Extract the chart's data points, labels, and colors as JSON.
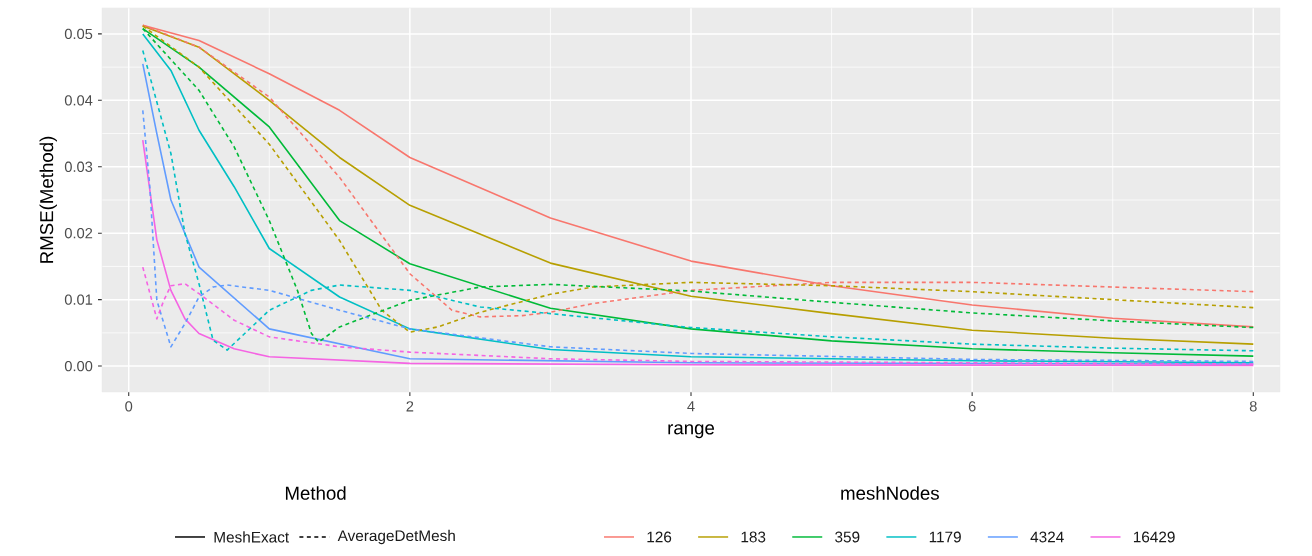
{
  "chart_data": {
    "type": "line",
    "xlabel": "range",
    "ylabel": "RMSE(Method)",
    "legend_title": "meshNodes",
    "legend": "bottom",
    "grid": true,
    "marker": "none",
    "xlim": [
      -0.19,
      8.19
    ],
    "ylim": [
      -0.0039,
      0.0539
    ],
    "xticks": [
      0,
      2,
      4,
      6,
      8
    ],
    "yticks": [
      {
        "value": 0,
        "label": "0.00"
      },
      {
        "value": 0.01,
        "label": "0.01"
      },
      {
        "value": 0.02,
        "label": "0.02"
      },
      {
        "value": 0.03,
        "label": "0.03"
      },
      {
        "value": 0.04,
        "label": "0.04"
      },
      {
        "value": 0.05,
        "label": "0.05"
      }
    ],
    "annotations": [
      "Method",
      "MeshExact",
      "AverageDetMesh"
    ],
    "series": [
      {
        "name": "126",
        "color": "#f8766d",
        "line_style": "solid",
        "x": [
          0.1,
          0.5,
          1,
          1.5,
          2,
          3,
          4,
          5,
          6,
          7,
          8
        ],
        "values": [
          0.0513,
          0.049,
          0.044,
          0.0385,
          0.0314,
          0.0223,
          0.0158,
          0.0121,
          0.0092,
          0.0072,
          0.0059
        ]
      },
      {
        "name": "183",
        "color": "#b79f00",
        "line_style": "solid",
        "x": [
          0.1,
          0.5,
          1,
          1.5,
          2,
          3,
          4,
          5,
          6,
          7,
          8
        ],
        "values": [
          0.0512,
          0.048,
          0.04,
          0.0314,
          0.0242,
          0.0155,
          0.0105,
          0.0079,
          0.0054,
          0.0042,
          0.0033
        ]
      },
      {
        "name": "359",
        "color": "#00ba38",
        "line_style": "solid",
        "x": [
          0.1,
          0.5,
          1,
          1.5,
          2,
          3,
          4,
          5,
          6,
          7,
          8
        ],
        "values": [
          0.0508,
          0.045,
          0.036,
          0.0219,
          0.0154,
          0.0087,
          0.0056,
          0.0038,
          0.0026,
          0.002,
          0.0015
        ]
      },
      {
        "name": "1179",
        "color": "#00bfc4",
        "line_style": "solid",
        "x": [
          0.1,
          0.3,
          0.5,
          0.75,
          1,
          1.5,
          2,
          3,
          4,
          6,
          8
        ],
        "values": [
          0.05,
          0.0445,
          0.0355,
          0.027,
          0.0177,
          0.0104,
          0.0056,
          0.0025,
          0.0014,
          0.0008,
          0.0005
        ]
      },
      {
        "name": "4324",
        "color": "#619cff",
        "line_style": "solid",
        "x": [
          0.1,
          0.2,
          0.3,
          0.5,
          1,
          2,
          4,
          8
        ],
        "values": [
          0.0455,
          0.035,
          0.025,
          0.0149,
          0.0056,
          0.0011,
          0.0005,
          0.0003
        ]
      },
      {
        "name": "16429",
        "color": "#f564e3",
        "line_style": "solid",
        "x": [
          0.1,
          0.2,
          0.3,
          0.4,
          0.5,
          0.75,
          1,
          2,
          4,
          8
        ],
        "values": [
          0.034,
          0.019,
          0.0114,
          0.0071,
          0.0049,
          0.0026,
          0.0014,
          0.0004,
          0.0002,
          0.0001
        ]
      },
      {
        "color": "#f8766d",
        "line_style": "dashed",
        "x": [
          0.1,
          0.5,
          1,
          1.5,
          2,
          2.3,
          2.5,
          2.8,
          3,
          3.3,
          4,
          5,
          6,
          7,
          8
        ],
        "values": [
          0.0513,
          0.048,
          0.0405,
          0.0284,
          0.0139,
          0.0084,
          0.0074,
          0.0076,
          0.0081,
          0.0094,
          0.0114,
          0.0126,
          0.0126,
          0.0119,
          0.0112
        ]
      },
      {
        "color": "#b79f00",
        "line_style": "dashed",
        "x": [
          0.1,
          0.5,
          1,
          1.5,
          1.8,
          2,
          2.2,
          2.5,
          3,
          3.3,
          4,
          5,
          6,
          7,
          8
        ],
        "values": [
          0.0512,
          0.045,
          0.0334,
          0.0189,
          0.0084,
          0.0051,
          0.0059,
          0.0081,
          0.0108,
          0.0119,
          0.0126,
          0.0121,
          0.0112,
          0.01,
          0.0088
        ]
      },
      {
        "color": "#00ba38",
        "line_style": "dashed",
        "x": [
          0.1,
          0.5,
          0.75,
          1,
          1.2,
          1.3,
          1.35,
          1.5,
          2,
          2.5,
          3,
          4,
          5,
          6,
          7,
          8
        ],
        "values": [
          0.0508,
          0.0415,
          0.033,
          0.0219,
          0.0114,
          0.0049,
          0.0036,
          0.0059,
          0.0099,
          0.0119,
          0.0123,
          0.0113,
          0.0096,
          0.008,
          0.0068,
          0.0058
        ]
      },
      {
        "color": "#00bfc4",
        "line_style": "dashed",
        "x": [
          0.1,
          0.3,
          0.4,
          0.5,
          0.6,
          0.7,
          0.8,
          1,
          1.3,
          1.5,
          2,
          2.5,
          3,
          4,
          5,
          6,
          7,
          8
        ],
        "values": [
          0.0475,
          0.032,
          0.02,
          0.0124,
          0.0039,
          0.0024,
          0.0044,
          0.0084,
          0.0114,
          0.0122,
          0.0114,
          0.0089,
          0.0079,
          0.0058,
          0.0044,
          0.0033,
          0.0027,
          0.0023
        ]
      },
      {
        "color": "#619cff",
        "line_style": "dashed",
        "x": [
          0.1,
          0.15,
          0.2,
          0.3,
          0.4,
          0.5,
          0.6,
          0.7,
          1,
          1.5,
          2,
          3,
          4,
          6,
          8
        ],
        "values": [
          0.0385,
          0.027,
          0.0099,
          0.0029,
          0.0064,
          0.0104,
          0.0119,
          0.0122,
          0.0114,
          0.0084,
          0.0056,
          0.0029,
          0.0019,
          0.001,
          0.0007
        ]
      },
      {
        "color": "#f564e3",
        "line_style": "dashed",
        "x": [
          0.1,
          0.2,
          0.25,
          0.3,
          0.4,
          0.5,
          0.75,
          1,
          1.5,
          2,
          3,
          4,
          8
        ],
        "values": [
          0.0149,
          0.0071,
          0.0099,
          0.0121,
          0.0124,
          0.0109,
          0.0069,
          0.0044,
          0.0029,
          0.0021,
          0.0011,
          0.0007,
          0.0003
        ]
      }
    ]
  }
}
